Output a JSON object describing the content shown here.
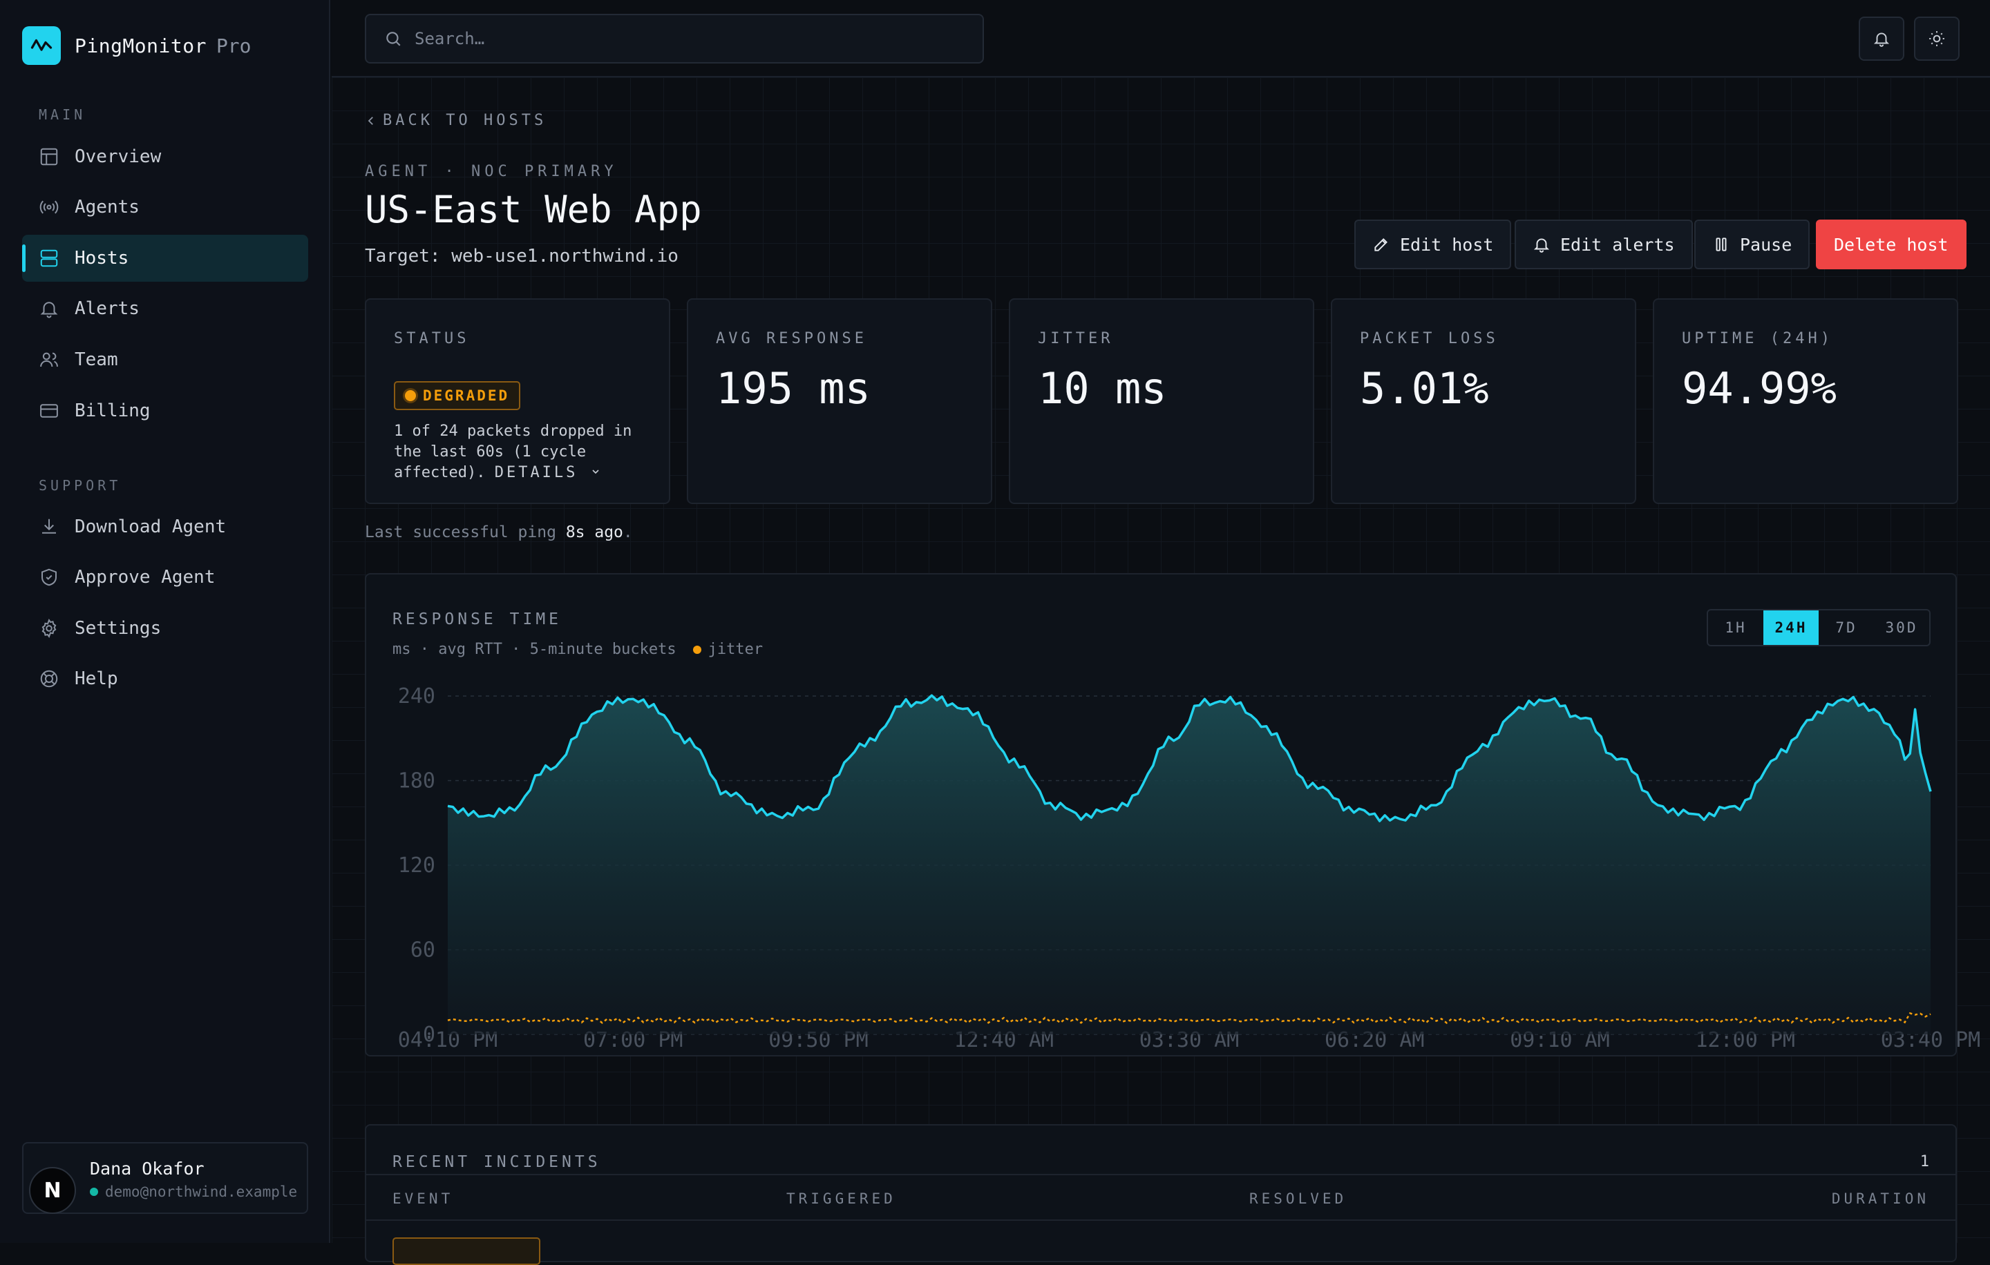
{
  "brand": {
    "name": "PingMonitor",
    "tier": "Pro"
  },
  "nav": {
    "main_label": "MAIN",
    "main_items": [
      {
        "label": "Overview",
        "icon": "layout-icon"
      },
      {
        "label": "Agents",
        "icon": "radio-icon"
      },
      {
        "label": "Hosts",
        "icon": "server-icon",
        "active": true
      },
      {
        "label": "Alerts",
        "icon": "bell-icon"
      },
      {
        "label": "Team",
        "icon": "users-icon"
      },
      {
        "label": "Billing",
        "icon": "credit-card-icon"
      }
    ],
    "support_label": "SUPPORT",
    "support_items": [
      {
        "label": "Download Agent",
        "icon": "download-icon"
      },
      {
        "label": "Approve Agent",
        "icon": "shield-icon"
      },
      {
        "label": "Settings",
        "icon": "gear-icon"
      },
      {
        "label": "Help",
        "icon": "lifebuoy-icon"
      }
    ]
  },
  "user": {
    "name": "Dana Okafor",
    "email": "demo@northwind.example",
    "initial": "N"
  },
  "search": {
    "placeholder": "Search…"
  },
  "page": {
    "back": "BACK TO HOSTS",
    "eyebrow": "AGENT · NOC PRIMARY",
    "title": "US-East Web App",
    "target": "Target: web-use1.northwind.io"
  },
  "actions": {
    "edit_host": "Edit host",
    "edit_alerts": "Edit alerts",
    "pause": "Pause",
    "delete": "Delete host"
  },
  "stats": {
    "status_label": "STATUS",
    "status_badge": "DEGRADED",
    "status_desc": "1 of 24 packets dropped in the last 60s (1 cycle affected).",
    "details": "DETAILS",
    "avg_label": "AVG RESPONSE",
    "avg_value": "195 ms",
    "jitter_label": "JITTER",
    "jitter_value": "10 ms",
    "loss_label": "PACKET LOSS",
    "loss_value": "5.01%",
    "uptime_label": "UPTIME (24H)",
    "uptime_value": "94.99%"
  },
  "last_ping": {
    "prefix": "Last successful ping",
    "value": "8s ago",
    "suffix": "."
  },
  "chart": {
    "title": "RESPONSE TIME",
    "subtitle": "ms · avg RTT · 5-minute buckets",
    "jitter_legend": "jitter",
    "ranges": [
      "1H",
      "24H",
      "7D",
      "30D"
    ],
    "active_range": "24H"
  },
  "chart_data": {
    "type": "area",
    "title": "RESPONSE TIME",
    "ylim": [
      0,
      240
    ],
    "yticks": [
      0,
      60,
      120,
      180,
      240
    ],
    "xticks": [
      "04:10 PM",
      "07:00 PM",
      "09:50 PM",
      "12:40 AM",
      "03:30 AM",
      "06:20 AM",
      "09:10 AM",
      "12:00 PM",
      "03:40 PM"
    ],
    "series": [
      {
        "name": "",
        "color": "#22d3ee",
        "keypoints": [
          [
            0,
            162
          ],
          [
            0.02,
            155
          ],
          [
            0.04,
            158
          ],
          [
            0.07,
            190
          ],
          [
            0.1,
            228
          ],
          [
            0.115,
            238
          ],
          [
            0.135,
            235
          ],
          [
            0.16,
            210
          ],
          [
            0.19,
            170
          ],
          [
            0.22,
            155
          ],
          [
            0.245,
            160
          ],
          [
            0.28,
            205
          ],
          [
            0.31,
            235
          ],
          [
            0.33,
            238
          ],
          [
            0.355,
            228
          ],
          [
            0.38,
            195
          ],
          [
            0.41,
            162
          ],
          [
            0.43,
            155
          ],
          [
            0.455,
            162
          ],
          [
            0.49,
            210
          ],
          [
            0.51,
            236
          ],
          [
            0.53,
            236
          ],
          [
            0.555,
            215
          ],
          [
            0.58,
            178
          ],
          [
            0.615,
            158
          ],
          [
            0.64,
            152
          ],
          [
            0.66,
            160
          ],
          [
            0.7,
            205
          ],
          [
            0.72,
            230
          ],
          [
            0.74,
            238
          ],
          [
            0.765,
            225
          ],
          [
            0.79,
            195
          ],
          [
            0.82,
            160
          ],
          [
            0.845,
            155
          ],
          [
            0.87,
            162
          ],
          [
            0.9,
            200
          ],
          [
            0.92,
            225
          ],
          [
            0.94,
            238
          ],
          [
            0.96,
            232
          ],
          [
            0.975,
            215
          ],
          [
            0.985,
            195
          ],
          [
            0.99,
            230
          ],
          [
            0.995,
            185
          ],
          [
            1.0,
            175
          ]
        ]
      },
      {
        "name": "jitter",
        "color": "#f59e0b",
        "mean": 10
      }
    ]
  },
  "incidents": {
    "title": "RECENT INCIDENTS",
    "count": "1",
    "columns": [
      "EVENT",
      "TRIGGERED",
      "RESOLVED",
      "DURATION"
    ]
  }
}
